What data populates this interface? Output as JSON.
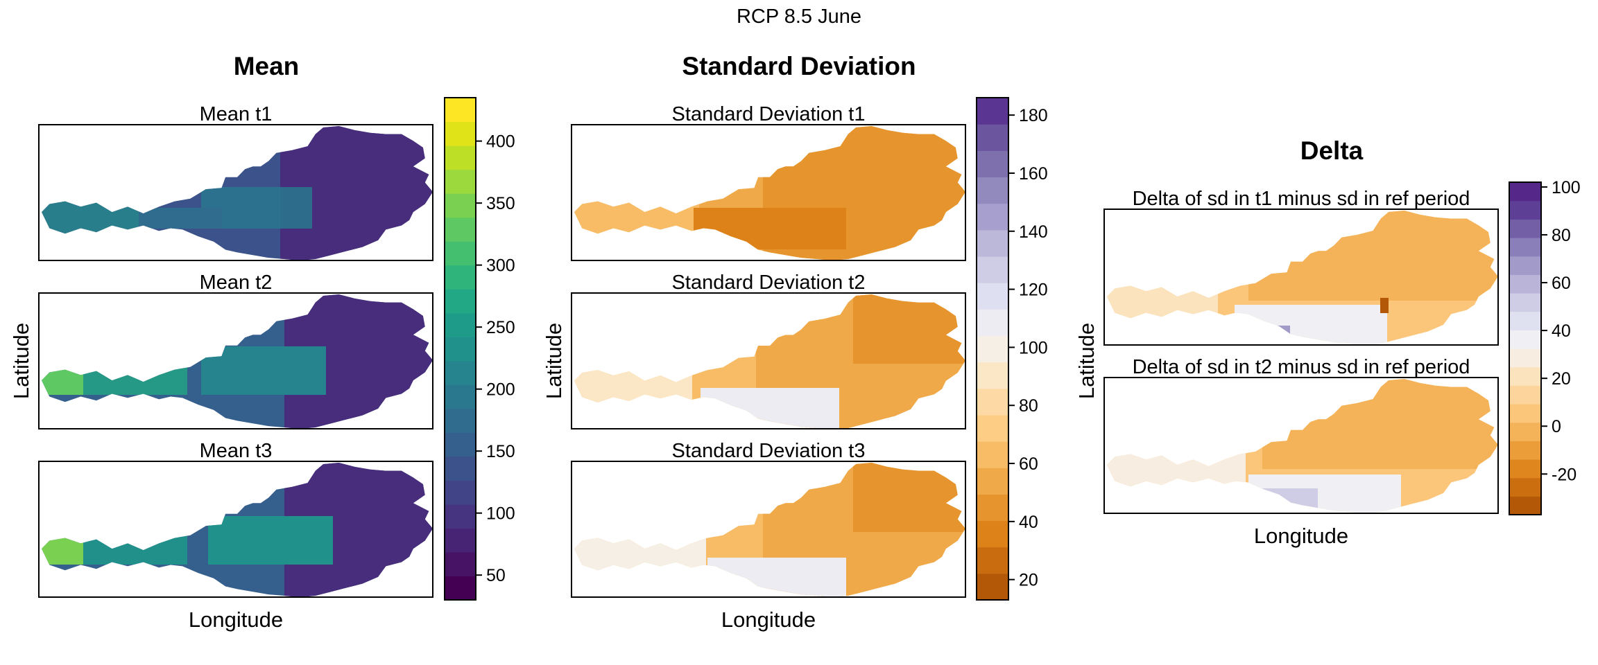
{
  "figure": {
    "title": "RCP 8.5 June"
  },
  "mean_group": {
    "title": "Mean",
    "ylabel": "Latitude",
    "xlabel": "Longitude",
    "panels": [
      {
        "title": "Mean t1"
      },
      {
        "title": "Mean t2"
      },
      {
        "title": "Mean t3"
      }
    ],
    "colorbar": {
      "range": [
        30,
        435
      ],
      "ticks": [
        "50",
        "100",
        "150",
        "200",
        "250",
        "300",
        "350",
        "400"
      ],
      "tick_values": [
        50,
        100,
        150,
        200,
        250,
        300,
        350,
        400
      ],
      "colors": [
        "#440154",
        "#471365",
        "#482475",
        "#463480",
        "#414487",
        "#3b528b",
        "#355f8d",
        "#2f6c8e",
        "#2a788e",
        "#25848e",
        "#21918c",
        "#1e9c89",
        "#22a884",
        "#2fb47c",
        "#44bf70",
        "#5ec962",
        "#7ad151",
        "#9bd93c",
        "#bddf26",
        "#dfe318",
        "#fde725"
      ]
    }
  },
  "sd_group": {
    "title": "Standard Deviation",
    "ylabel": "Latitude",
    "xlabel": "Longitude",
    "panels": [
      {
        "title": "Standard Deviation t1"
      },
      {
        "title": "Standard Deviation t2"
      },
      {
        "title": "Standard Deviation t3"
      }
    ],
    "colorbar": {
      "range": [
        13,
        186
      ],
      "ticks": [
        "20",
        "40",
        "60",
        "80",
        "100",
        "120",
        "140",
        "160",
        "180"
      ],
      "tick_values": [
        20,
        40,
        60,
        80,
        100,
        120,
        140,
        160,
        180
      ],
      "colors": [
        "#b35806",
        "#c96b0f",
        "#dd8119",
        "#e6952e",
        "#f0a949",
        "#f7bc65",
        "#fdcd86",
        "#fddaa5",
        "#fbe6c5",
        "#f5efe6",
        "#ececf2",
        "#dedff0",
        "#cfcde6",
        "#bcb8da",
        "#a79fcd",
        "#9289bd",
        "#7d70ad",
        "#6b559f",
        "#5a3692"
      ]
    }
  },
  "delta_group": {
    "title": "Delta",
    "ylabel": "Latitude",
    "xlabel": "Longitude",
    "panels": [
      {
        "title": "Delta of sd in t1 minus sd in ref period"
      },
      {
        "title": "Delta of sd in t2 minus sd in ref period"
      }
    ],
    "colorbar": {
      "range": [
        -37,
        102
      ],
      "ticks": [
        "-20",
        "0",
        "20",
        "40",
        "60",
        "80",
        "100"
      ],
      "tick_values": [
        -20,
        0,
        20,
        40,
        60,
        80,
        100
      ],
      "colors": [
        "#b35806",
        "#cb6e10",
        "#df861e",
        "#eb9d3a",
        "#f5b359",
        "#fcc67a",
        "#fdd59c",
        "#fbe3bd",
        "#f7ede0",
        "#efeff4",
        "#e0e1f0",
        "#cfcde6",
        "#bab5d8",
        "#a29ac9",
        "#8a7fb8",
        "#735fa6",
        "#5e3f96",
        "#542788"
      ]
    }
  }
}
